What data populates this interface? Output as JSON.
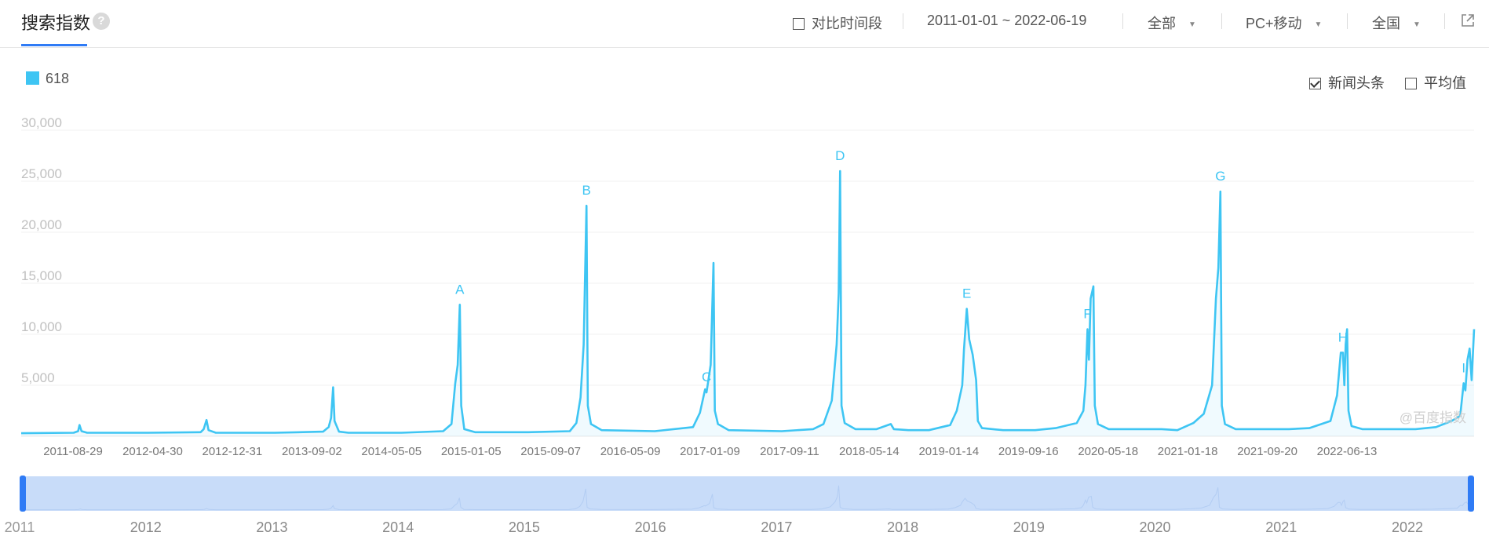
{
  "header": {
    "title": "搜索指数",
    "help_symbol": "?",
    "compare_label": "对比时间段",
    "date_range": "2011-01-01 ~ 2022-06-19",
    "source_select": "全部",
    "device_select": "PC+移动",
    "region_select": "全国",
    "icons": {
      "help": "question-circle-icon",
      "share": "external-link-icon",
      "dropdown": "caret-down-icon"
    }
  },
  "legend": {
    "keyword": "618",
    "color": "#3ec5f3"
  },
  "options": {
    "news_label": "新闻头条",
    "news_checked": true,
    "average_label": "平均值",
    "average_checked": false
  },
  "watermark": "@百度指数",
  "slider": {
    "year_labels": [
      "2011",
      "2012",
      "2013",
      "2014",
      "2015",
      "2016",
      "2017",
      "2018",
      "2019",
      "2020",
      "2021",
      "2022"
    ],
    "handle_color": "#2f7bf5",
    "fill_color": "#c8dcf9"
  },
  "chart_data": {
    "type": "area",
    "series": [
      {
        "name": "618",
        "color": "#3ec5f3"
      }
    ],
    "x_tick_labels": [
      "2011-08-29",
      "2012-04-30",
      "2012-12-31",
      "2013-09-02",
      "2014-05-05",
      "2015-01-05",
      "2015-09-07",
      "2016-05-09",
      "2017-01-09",
      "2017-09-11",
      "2018-05-14",
      "2019-01-14",
      "2019-09-16",
      "2020-05-18",
      "2021-01-18",
      "2021-09-20",
      "2022-06-13"
    ],
    "x_range": [
      "2011-01-01",
      "2022-06-19"
    ],
    "y_ticks": [
      "5,000",
      "10,000",
      "15,000",
      "20,000",
      "25,000",
      "30,000"
    ],
    "ylim": [
      0,
      30000
    ],
    "grid": true,
    "points": [
      [
        "2011-01-01",
        300
      ],
      [
        "2011-06-01",
        350
      ],
      [
        "2011-06-14",
        500
      ],
      [
        "2011-06-18",
        1100
      ],
      [
        "2011-06-24",
        500
      ],
      [
        "2011-07-10",
        350
      ],
      [
        "2012-01-01",
        350
      ],
      [
        "2012-06-01",
        400
      ],
      [
        "2012-06-10",
        700
      ],
      [
        "2012-06-18",
        1600
      ],
      [
        "2012-06-24",
        600
      ],
      [
        "2012-07-15",
        350
      ],
      [
        "2013-01-01",
        350
      ],
      [
        "2013-05-20",
        450
      ],
      [
        "2013-06-05",
        900
      ],
      [
        "2013-06-12",
        1800
      ],
      [
        "2013-06-18",
        4800
      ],
      [
        "2013-06-22",
        1500
      ],
      [
        "2013-07-05",
        450
      ],
      [
        "2013-08-01",
        350
      ],
      [
        "2014-01-01",
        350
      ],
      [
        "2014-05-01",
        500
      ],
      [
        "2014-05-25",
        1200
      ],
      [
        "2014-06-05",
        5200
      ],
      [
        "2014-06-12",
        7000
      ],
      [
        "2014-06-18",
        12900
      ],
      [
        "2014-06-22",
        3000
      ],
      [
        "2014-07-01",
        700
      ],
      [
        "2014-08-01",
        400
      ],
      [
        "2015-01-01",
        400
      ],
      [
        "2015-05-01",
        500
      ],
      [
        "2015-05-20",
        1300
      ],
      [
        "2015-06-01",
        3800
      ],
      [
        "2015-06-10",
        9000
      ],
      [
        "2015-06-18",
        22600
      ],
      [
        "2015-06-22",
        3000
      ],
      [
        "2015-07-01",
        1200
      ],
      [
        "2015-08-01",
        600
      ],
      [
        "2016-01-01",
        500
      ],
      [
        "2016-04-20",
        900
      ],
      [
        "2016-05-10",
        2300
      ],
      [
        "2016-05-25",
        4600
      ],
      [
        "2016-05-29",
        4300
      ],
      [
        "2016-06-02",
        5200
      ],
      [
        "2016-06-10",
        7000
      ],
      [
        "2016-06-18",
        17000
      ],
      [
        "2016-06-22",
        2500
      ],
      [
        "2016-07-01",
        1200
      ],
      [
        "2016-08-01",
        600
      ],
      [
        "2017-01-01",
        500
      ],
      [
        "2017-04-01",
        700
      ],
      [
        "2017-05-01",
        1200
      ],
      [
        "2017-05-25",
        3500
      ],
      [
        "2017-06-08",
        9000
      ],
      [
        "2017-06-14",
        14000
      ],
      [
        "2017-06-18",
        26000
      ],
      [
        "2017-06-22",
        3000
      ],
      [
        "2017-07-01",
        1300
      ],
      [
        "2017-08-01",
        700
      ],
      [
        "2017-10-01",
        700
      ],
      [
        "2017-11-11",
        1200
      ],
      [
        "2017-11-20",
        700
      ],
      [
        "2018-01-01",
        600
      ],
      [
        "2018-03-01",
        600
      ],
      [
        "2018-05-01",
        1100
      ],
      [
        "2018-05-20",
        2500
      ],
      [
        "2018-06-05",
        5000
      ],
      [
        "2018-06-10",
        8500
      ],
      [
        "2018-06-18",
        12500
      ],
      [
        "2018-06-25",
        9500
      ],
      [
        "2018-07-05",
        8000
      ],
      [
        "2018-07-15",
        5500
      ],
      [
        "2018-07-20",
        1500
      ],
      [
        "2018-08-01",
        800
      ],
      [
        "2018-10-01",
        600
      ],
      [
        "2019-01-01",
        600
      ],
      [
        "2019-03-01",
        800
      ],
      [
        "2019-05-01",
        1300
      ],
      [
        "2019-05-20",
        2500
      ],
      [
        "2019-05-26",
        5000
      ],
      [
        "2019-06-01",
        10500
      ],
      [
        "2019-06-05",
        7500
      ],
      [
        "2019-06-10",
        13500
      ],
      [
        "2019-06-18",
        14700
      ],
      [
        "2019-06-22",
        3000
      ],
      [
        "2019-07-01",
        1200
      ],
      [
        "2019-08-01",
        700
      ],
      [
        "2020-01-01",
        700
      ],
      [
        "2020-02-15",
        600
      ],
      [
        "2020-04-01",
        1300
      ],
      [
        "2020-05-01",
        2200
      ],
      [
        "2020-05-25",
        5000
      ],
      [
        "2020-06-05",
        13500
      ],
      [
        "2020-06-12",
        16500
      ],
      [
        "2020-06-18",
        24000
      ],
      [
        "2020-06-22",
        3000
      ],
      [
        "2020-07-01",
        1200
      ],
      [
        "2020-08-01",
        700
      ],
      [
        "2021-01-01",
        700
      ],
      [
        "2021-03-01",
        800
      ],
      [
        "2021-05-01",
        1500
      ],
      [
        "2021-05-20",
        4000
      ],
      [
        "2021-05-31",
        8200
      ],
      [
        "2021-06-06",
        8200
      ],
      [
        "2021-06-10",
        5000
      ],
      [
        "2021-06-14",
        9000
      ],
      [
        "2021-06-18",
        10500
      ],
      [
        "2021-06-22",
        2500
      ],
      [
        "2021-07-01",
        1000
      ],
      [
        "2021-08-01",
        700
      ],
      [
        "2022-01-01",
        700
      ],
      [
        "2022-03-01",
        900
      ],
      [
        "2022-04-15",
        1500
      ],
      [
        "2022-05-10",
        2000
      ],
      [
        "2022-05-20",
        5200
      ],
      [
        "2022-05-25",
        4500
      ],
      [
        "2022-05-31",
        7500
      ],
      [
        "2022-06-06",
        8600
      ],
      [
        "2022-06-12",
        5500
      ],
      [
        "2022-06-19",
        10500
      ]
    ],
    "annotations": [
      {
        "label": "A",
        "date": "2014-06-18",
        "value": 12900
      },
      {
        "label": "B",
        "date": "2015-06-18",
        "value": 22600
      },
      {
        "label": "C",
        "date": "2016-05-29",
        "value": 4300
      },
      {
        "label": "D",
        "date": "2017-06-18",
        "value": 26000
      },
      {
        "label": "E",
        "date": "2018-06-18",
        "value": 12500
      },
      {
        "label": "F",
        "date": "2019-06-01",
        "value": 10500
      },
      {
        "label": "G",
        "date": "2020-06-18",
        "value": 24000
      },
      {
        "label": "H",
        "date": "2021-06-06",
        "value": 8200
      },
      {
        "label": "I",
        "date": "2022-05-20",
        "value": 5200
      }
    ]
  }
}
